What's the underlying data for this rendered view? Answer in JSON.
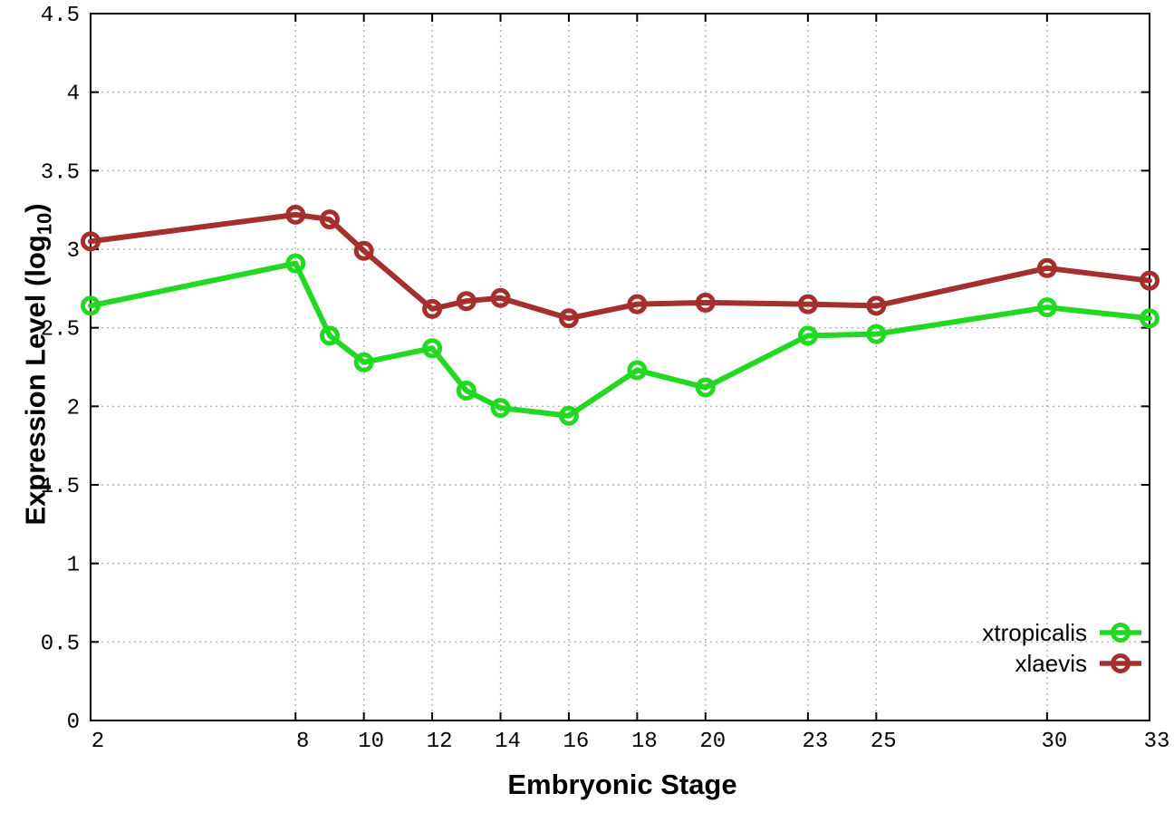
{
  "chart_data": {
    "type": "line",
    "title": "",
    "xlabel": "Embryonic Stage",
    "ylabel": {
      "main": "Expression Level (log",
      "sub": "10",
      "close": ")"
    },
    "xlim": [
      2,
      33
    ],
    "ylim": [
      0,
      4.5
    ],
    "grid": true,
    "x": [
      2,
      8,
      9,
      10,
      12,
      13,
      14,
      16,
      18,
      20,
      23,
      25,
      30,
      33
    ],
    "series": [
      {
        "name": "xtropicalis",
        "color": "#22d822",
        "values": [
          2.64,
          2.91,
          2.45,
          2.28,
          2.37,
          2.1,
          1.99,
          1.94,
          2.23,
          2.12,
          2.45,
          2.46,
          2.63,
          2.56
        ]
      },
      {
        "name": "xlaevis",
        "color": "#a3302c",
        "values": [
          3.05,
          3.22,
          3.19,
          2.99,
          2.62,
          2.67,
          2.69,
          2.56,
          2.65,
          2.66,
          2.65,
          2.64,
          2.88,
          2.8
        ]
      }
    ],
    "x_ticks": {
      "values": [
        2,
        8,
        10,
        12,
        14,
        16,
        18,
        20,
        23,
        25,
        30,
        33
      ],
      "labels": [
        "2",
        "8",
        "10",
        "12",
        "14",
        "16",
        "18",
        "20",
        "23",
        "25",
        "30",
        "33"
      ]
    },
    "y_ticks": {
      "values": [
        0,
        0.5,
        1,
        1.5,
        2,
        2.5,
        3,
        3.5,
        4,
        4.5
      ],
      "labels": [
        "0",
        "0.5",
        "1",
        "1.5",
        "2",
        "2.5",
        "3",
        "3.5",
        "4",
        "4.5"
      ]
    },
    "legend_position": "bottom-right"
  },
  "colors": {
    "background": "#ffffff",
    "border": "#000000",
    "grid": "#b3b3b3",
    "text": "#000000"
  }
}
